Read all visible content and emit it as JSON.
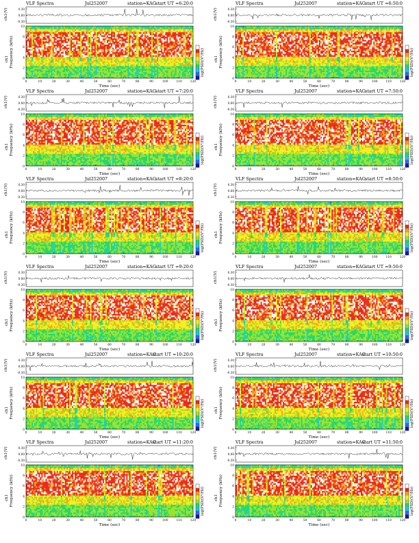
{
  "figure": {
    "header_label": "VLF Spectra",
    "station": "station=KAG",
    "upper_ylabel": "ch1(V)",
    "lower_ylabel_line1": "ch1",
    "lower_ylabel_line2": "Frequency (kHz)",
    "xlabel": "Time (sec)",
    "colorbar_label": "log(PSD)(V²/Hz)"
  },
  "panels": [
    {
      "date": "Jul252007",
      "start": "start UT =6:20:0"
    },
    {
      "date": "Jul252007",
      "start": "start UT =6:50:0"
    },
    {
      "date": "Jul252007",
      "start": "start UT =7:20:0"
    },
    {
      "date": "Jul252007",
      "start": "start UT =7:50:0"
    },
    {
      "date": "Jul252007",
      "start": "start UT =8:20:0"
    },
    {
      "date": "Jul252007",
      "start": "start UT =8:50:0"
    },
    {
      "date": "Jul252007",
      "start": "start UT =9:20:0"
    },
    {
      "date": "Jul252007",
      "start": "start UT =9:50:0"
    },
    {
      "date": "Jul252007",
      "start": "start UT =10:20:0"
    },
    {
      "date": "Jul252007",
      "start": "start UT =10:50:0"
    },
    {
      "date": "Jul252007",
      "start": "start UT =11:20:0"
    },
    {
      "date": "Jul252007",
      "start": "start UT =11:50:0"
    }
  ],
  "chart_data": {
    "type": "heatmap",
    "panel_count": 12,
    "xlabel": "Time (sec)",
    "xlim": [
      0,
      120
    ],
    "xticks": [
      "0",
      "10",
      "20",
      "30",
      "40",
      "50",
      "60",
      "70",
      "80",
      "90",
      "100",
      "110",
      "120"
    ],
    "ylabel": "Frequency (kHz)",
    "ylim": [
      0,
      10
    ],
    "yticks": [
      "0",
      "2",
      "4",
      "6",
      "8",
      "10"
    ],
    "waveform_ylabel": "ch1(V)",
    "waveform_yticks": [
      "0.30",
      "0.00",
      "-0.30"
    ],
    "colorbar_label": "log(PSD)(V²/Hz)",
    "colormap": [
      "#1a1aa6",
      "#2a6bff",
      "#18c8e8",
      "#22d86a",
      "#9be22a",
      "#f2ef1c",
      "#f5a21a",
      "#ea2a1a",
      "#ffffff"
    ]
  }
}
